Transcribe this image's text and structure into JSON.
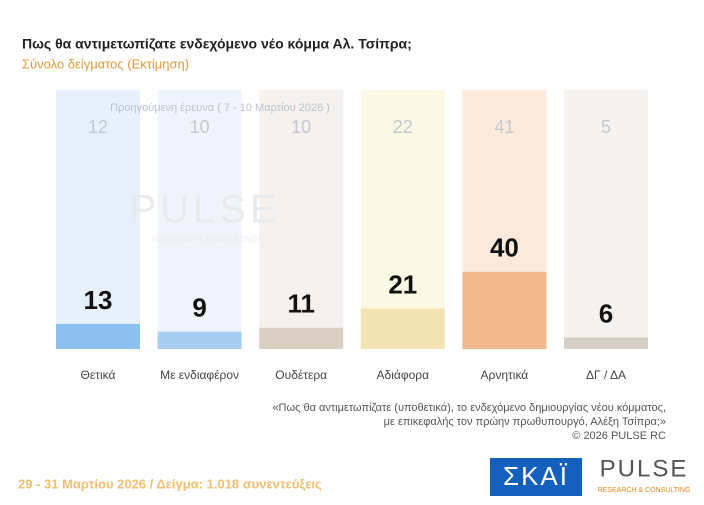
{
  "chart_data": {
    "type": "bar",
    "title": "Πως θα αντιμετωπίζατε ενδεχόμενο νέο κόμμα Αλ. Τσίπρα;",
    "subtitle": "Σύνολο δείγματος  (Εκτίμηση)",
    "previous_label": "Προηγούμενη έρευνα ( 7 - 10 Μαρτίου 2026 )",
    "categories": [
      "Θετικά",
      "Με ενδιαφέρον",
      "Ουδέτερα",
      "Αδιάφορα",
      "Αρνητικά",
      "ΔΓ / ΔΑ"
    ],
    "values": [
      13,
      9,
      11,
      21,
      40,
      6
    ],
    "previous_values": [
      12,
      10,
      10,
      22,
      41,
      5
    ],
    "colors": [
      "#8cc0ee",
      "#a9cdf0",
      "#d9cfc3",
      "#f3e3b3",
      "#f2b98c",
      "#d8cfc5"
    ],
    "column_colors": [
      "#e6f1fc",
      "#eef5fc",
      "#f6f1ed",
      "#fdf7e6",
      "#fcebdc",
      "#f7f2ee"
    ],
    "footnote": [
      "«Πως θα αντιμετωπίζατε (υποθετικά), το ενδεχόμενο δημιουργίας νέου κόμματος,",
      "με επικεφαλής τον πρώην πρωθυπουργό, Αλέξη Τσίπρα;»",
      "©  2026  PULSE RC"
    ],
    "footer": "29 - 31  Μαρτίου 2026  /  Δείγμα:  1.018  συνεντεύξεις",
    "logo_skai": "ΣΚΑΪ",
    "logo_pulse": "PULSE",
    "logo_pulse_sub": "RESEARCH & CONSULTING"
  }
}
